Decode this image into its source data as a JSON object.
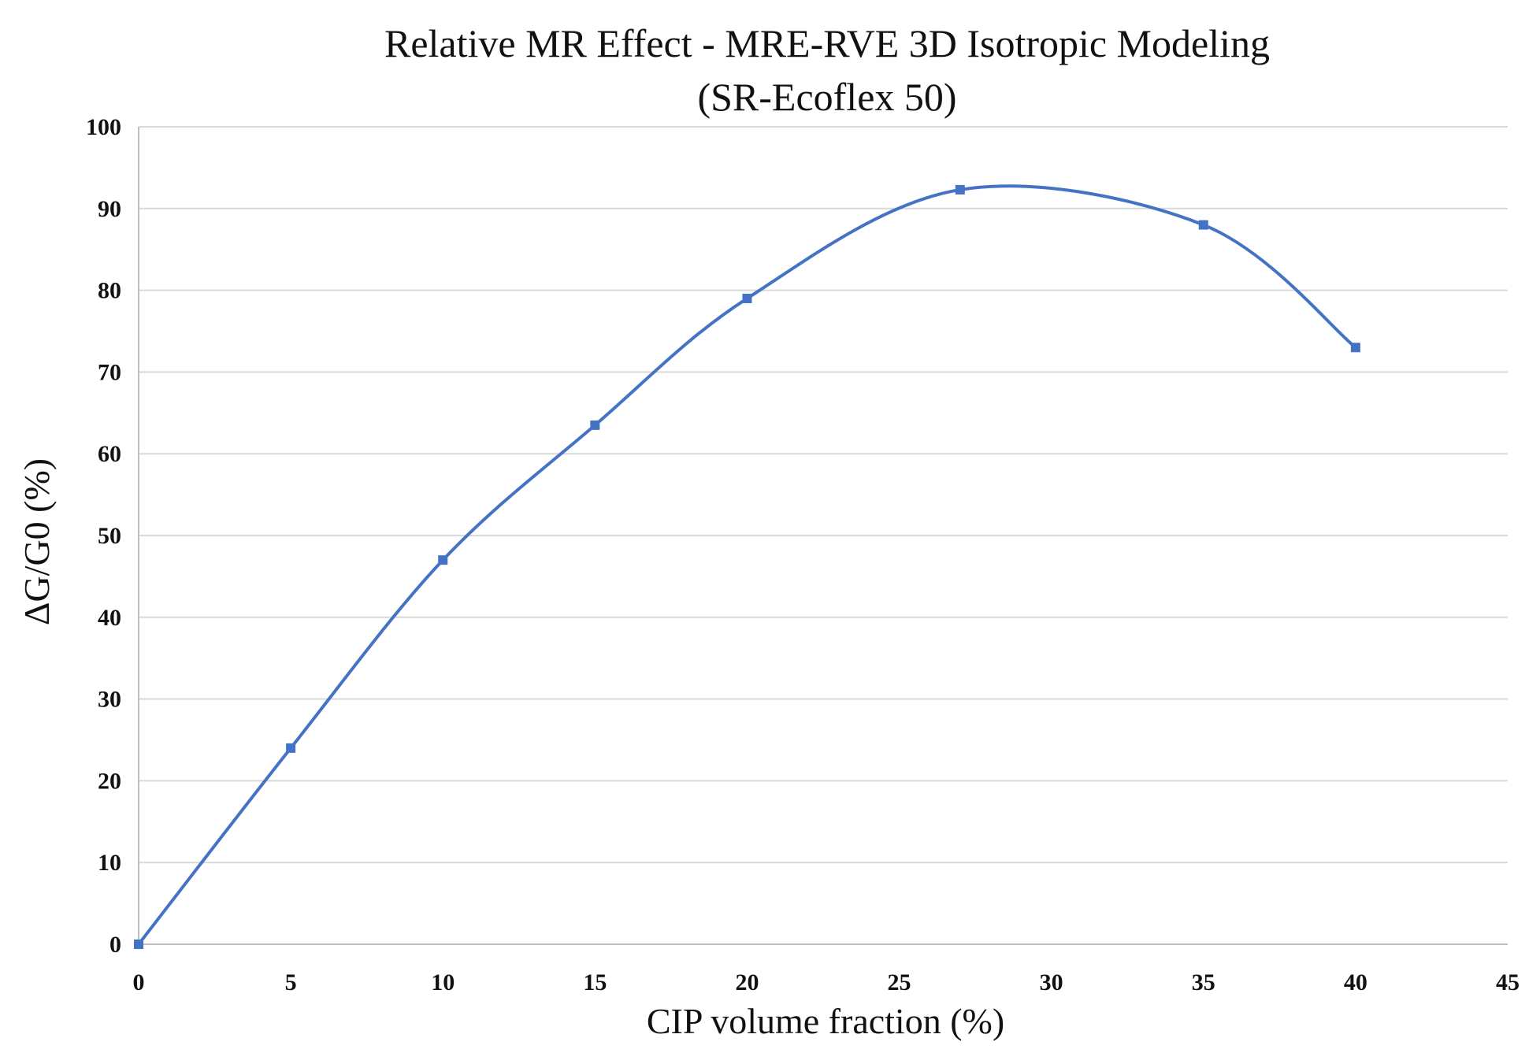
{
  "chart_data": {
    "type": "line",
    "title": "Relative MR Effect - MRE-RVE 3D Isotropic Modeling",
    "subtitle": "(SR-Ecoflex 50)",
    "xlabel": "CIP volume fraction (%)",
    "ylabel": "ΔG/G0 (%)",
    "xlim": [
      0,
      45
    ],
    "ylim": [
      0,
      100
    ],
    "x_ticks": [
      0,
      5,
      10,
      15,
      20,
      25,
      30,
      35,
      40,
      45
    ],
    "y_ticks": [
      0,
      10,
      20,
      30,
      40,
      50,
      60,
      70,
      80,
      90,
      100
    ],
    "x_tick_labels": [
      "0",
      "5",
      "10",
      "15",
      "20",
      "25",
      "30",
      "35",
      "40",
      "45"
    ],
    "y_tick_labels": [
      "0",
      "10",
      "20",
      "30",
      "40",
      "50",
      "60",
      "70",
      "80",
      "90",
      "100"
    ],
    "grid": true,
    "legend": "none",
    "smooth": true,
    "color": "#4472c4",
    "series": [
      {
        "x": [
          0,
          5,
          10,
          15,
          20,
          27,
          35,
          40
        ],
        "y": [
          0,
          24,
          47,
          63.5,
          79,
          92.3,
          88,
          73
        ]
      }
    ]
  }
}
